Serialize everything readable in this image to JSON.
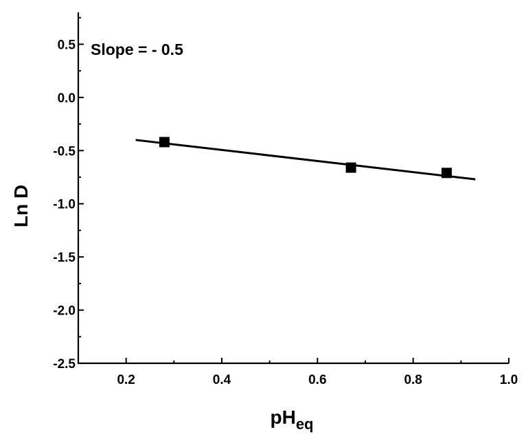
{
  "chart_data": {
    "type": "scatter",
    "xlabel": "pH",
    "xlabel_sub": "eq",
    "ylabel": "Ln D",
    "annotation": "Slope = - 0.5",
    "xlim": [
      0.1,
      1.0
    ],
    "ylim": [
      -2.5,
      0.8
    ],
    "xticks": [
      0.2,
      0.4,
      0.6,
      0.8,
      1.0
    ],
    "xtick_labels": [
      "0.2",
      "0.4",
      "0.6",
      "0.8",
      "1.0"
    ],
    "yticks": [
      0.5,
      0.0,
      -0.5,
      -1.0,
      -1.5,
      -2.0,
      -2.5
    ],
    "ytick_labels": [
      "0.5",
      "0.0",
      "-0.5",
      "-1.0",
      "-1.5",
      "-2.0",
      "-2.5"
    ],
    "yminor": [
      0.75,
      0.25,
      -0.25,
      -0.75,
      -1.25,
      -1.75,
      -2.25
    ],
    "xminor": [
      0.3,
      0.5,
      0.7,
      0.9
    ],
    "grid": false,
    "series": [
      {
        "x": [
          0.28,
          0.67,
          0.87
        ],
        "y": [
          -0.42,
          -0.66,
          -0.71
        ]
      }
    ],
    "fit_line": {
      "x": [
        0.22,
        0.93
      ],
      "y": [
        -0.4,
        -0.77
      ]
    }
  }
}
